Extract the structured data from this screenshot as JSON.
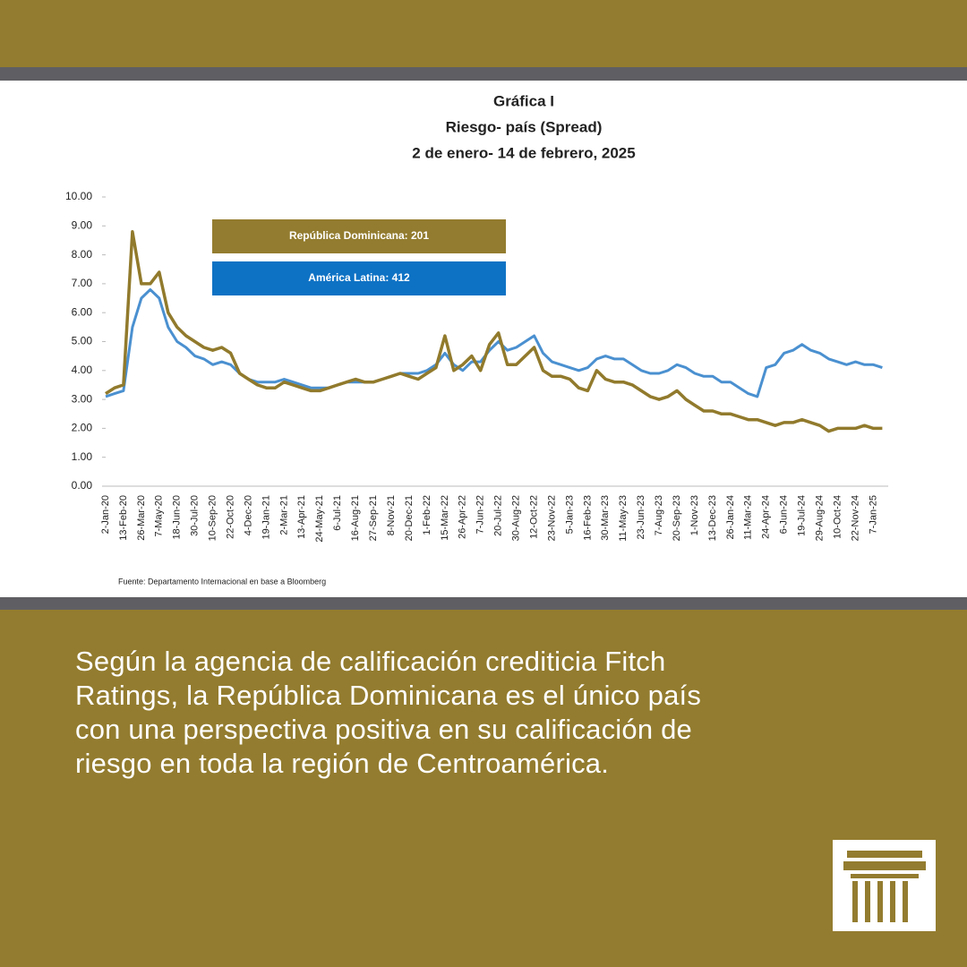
{
  "chart_data": {
    "type": "line",
    "title": "Gráfica I",
    "subtitle": [
      "Riesgo- país (Spread)",
      "2 de enero- 14 de febrero, 2025"
    ],
    "source": "Fuente: Departamento Internacional en base a Bloomberg",
    "categories": [
      "2-Jan-20",
      null,
      "13-Feb-20",
      null,
      "26-Mar-20",
      null,
      "7-May-20",
      null,
      "18-Jun-20",
      null,
      "30-Jul-20",
      null,
      "10-Sep-20",
      null,
      "22-Oct-20",
      null,
      "4-Dec-20",
      null,
      "19-Jan-21",
      null,
      "2-Mar-21",
      null,
      "13-Apr-21",
      null,
      "24-May-21",
      null,
      "6-Jul-21",
      null,
      "16-Aug-21",
      null,
      "27-Sep-21",
      null,
      "8-Nov-21",
      null,
      "20-Dec-21",
      null,
      "1-Feb-22",
      null,
      "15-Mar-22",
      null,
      "26-Apr-22",
      null,
      "7-Jun-22",
      null,
      "20-Jul-22",
      null,
      "30-Aug-22",
      null,
      "12-Oct-22",
      null,
      "23-Nov-22",
      null,
      "5-Jan-23",
      null,
      "16-Feb-23",
      null,
      "30-Mar-23",
      null,
      "11-May-23",
      null,
      "23-Jun-23",
      null,
      "7-Aug-23",
      null,
      "20-Sep-23",
      null,
      "1-Nov-23",
      null,
      "13-Dec-23",
      null,
      "26-Jan-24",
      null,
      "11-Mar-24",
      null,
      "24-Apr-24",
      null,
      "6-Jun-24",
      null,
      "19-Jul-24",
      null,
      "29-Aug-24",
      null,
      "10-Oct-24",
      null,
      "22-Nov-24",
      null,
      "7-Jan-25",
      null
    ],
    "series": [
      {
        "name": "República Dominicana: 201",
        "color": "#917a2c",
        "values": [
          3.2,
          3.4,
          3.5,
          8.8,
          7.0,
          7.0,
          7.4,
          6.0,
          5.5,
          5.2,
          5.0,
          4.8,
          4.7,
          4.8,
          4.6,
          3.9,
          3.7,
          3.5,
          3.4,
          3.4,
          3.6,
          3.5,
          3.4,
          3.3,
          3.3,
          3.4,
          3.5,
          3.6,
          3.7,
          3.6,
          3.6,
          3.7,
          3.8,
          3.9,
          3.8,
          3.7,
          3.9,
          4.1,
          5.2,
          4.0,
          4.2,
          4.5,
          4.0,
          4.9,
          5.3,
          4.2,
          4.2,
          4.5,
          4.8,
          4.0,
          3.8,
          3.8,
          3.7,
          3.4,
          3.3,
          4.0,
          3.7,
          3.6,
          3.6,
          3.5,
          3.3,
          3.1,
          3.0,
          3.1,
          3.3,
          3.0,
          2.8,
          2.6,
          2.6,
          2.5,
          2.5,
          2.4,
          2.3,
          2.3,
          2.2,
          2.1,
          2.2,
          2.2,
          2.3,
          2.2,
          2.1,
          1.9,
          2.0,
          2.0,
          2.0,
          2.1,
          2.0,
          2.0
        ]
      },
      {
        "name": "América Latina: 412",
        "color": "#4a90d0",
        "values": [
          3.1,
          3.2,
          3.3,
          5.5,
          6.5,
          6.8,
          6.5,
          5.5,
          5.0,
          4.8,
          4.5,
          4.4,
          4.2,
          4.3,
          4.2,
          3.9,
          3.7,
          3.6,
          3.6,
          3.6,
          3.7,
          3.6,
          3.5,
          3.4,
          3.4,
          3.4,
          3.5,
          3.6,
          3.6,
          3.6,
          3.6,
          3.7,
          3.8,
          3.9,
          3.9,
          3.9,
          4.0,
          4.2,
          4.6,
          4.2,
          4.0,
          4.3,
          4.3,
          4.7,
          5.0,
          4.7,
          4.8,
          5.0,
          5.2,
          4.6,
          4.3,
          4.2,
          4.1,
          4.0,
          4.1,
          4.4,
          4.5,
          4.4,
          4.4,
          4.2,
          4.0,
          3.9,
          3.9,
          4.0,
          4.2,
          4.1,
          3.9,
          3.8,
          3.8,
          3.6,
          3.6,
          3.4,
          3.2,
          3.1,
          4.1,
          4.2,
          4.6,
          4.7,
          4.9,
          4.7,
          4.6,
          4.4,
          4.3,
          4.2,
          4.3,
          4.2,
          4.2,
          4.1
        ]
      }
    ],
    "legend_colors": [
      "#937c2f",
      "#0e72c4"
    ],
    "ylim": [
      0,
      10
    ],
    "yticks": [
      {
        "value": 0,
        "label": "0.00"
      },
      {
        "value": 1,
        "label": "1.00"
      },
      {
        "value": 2,
        "label": "2.00"
      },
      {
        "value": 3,
        "label": "3.00"
      },
      {
        "value": 4,
        "label": "4.00"
      },
      {
        "value": 5,
        "label": "5.00"
      },
      {
        "value": 6,
        "label": "6.00"
      },
      {
        "value": 7,
        "label": "7.00"
      },
      {
        "value": 8,
        "label": "8.00"
      },
      {
        "value": 9,
        "label": "9.00"
      },
      {
        "value": 10,
        "label": "10.00"
      }
    ],
    "grid": false
  },
  "caption": "Según la agencia de calificación crediticia Fitch Ratings, la República Dominicana es el único país con una perspectiva positiva en su calificación de riesgo en toda la región de Centroamérica."
}
